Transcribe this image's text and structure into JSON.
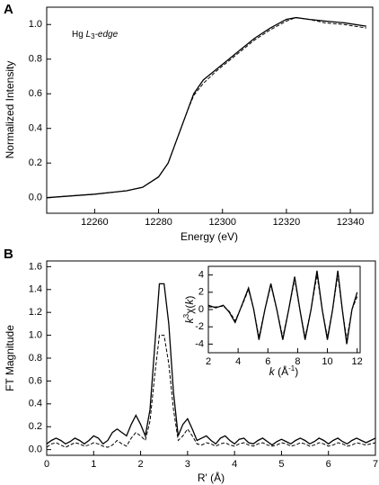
{
  "chart_data": [
    {
      "type": "line",
      "panel": "B_placeholder_unused"
    }
  ]
}
